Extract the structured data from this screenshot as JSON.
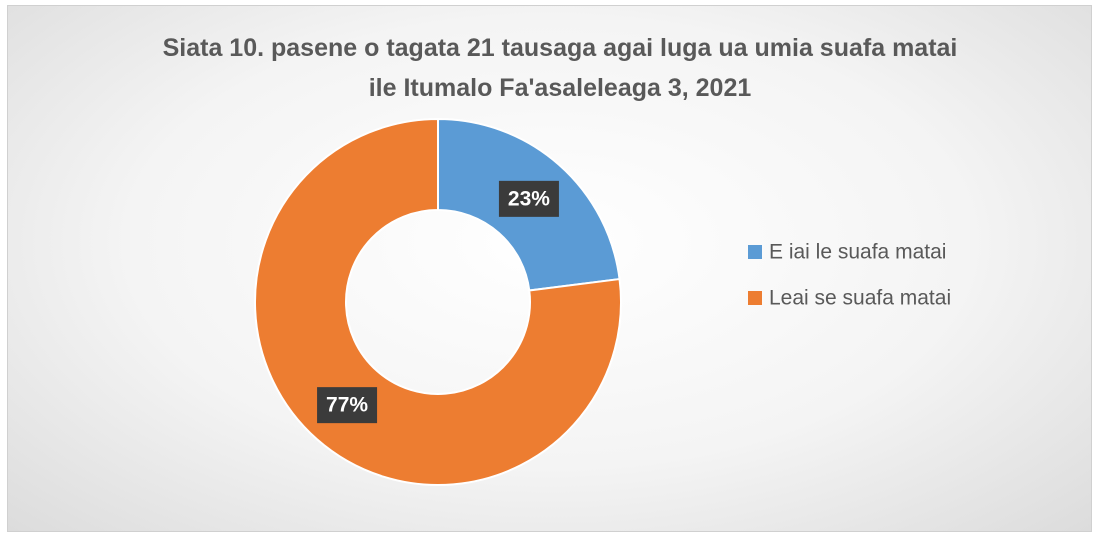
{
  "chart_data": {
    "type": "donut",
    "title": "Siata 10. pasene o tagata 21 tausaga agai luga ua umia suafa matai ile Itumalo Fa'asaleleaga 3, 2021",
    "categories": [
      "E iai le suafa matai",
      "Leai se suafa matai"
    ],
    "values": [
      23,
      77
    ],
    "value_labels": [
      "23%",
      "77%"
    ],
    "colors": [
      "#5b9bd5",
      "#ed7d31"
    ],
    "legend": "right"
  }
}
